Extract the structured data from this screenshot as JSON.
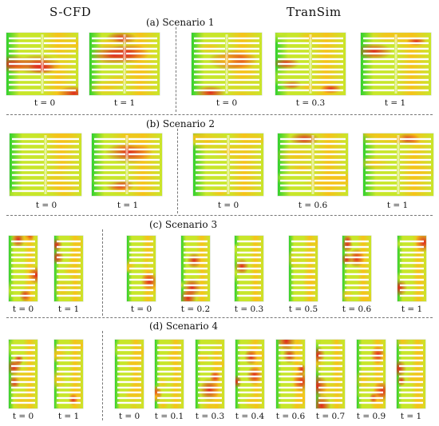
{
  "headers": {
    "left": "S-CFD",
    "right": "TranSim"
  },
  "scenarios": [
    {
      "title": "(a) Scenario 1",
      "scfd": [
        "t = 0",
        "t = 1"
      ],
      "transim": [
        "t = 0",
        "t = 0.3",
        "t = 1"
      ]
    },
    {
      "title": "(b) Scenario 2",
      "scfd": [
        "t = 0",
        "t = 1"
      ],
      "transim": [
        "t = 0",
        "t = 0.6",
        "t = 1"
      ]
    },
    {
      "title": "(c) Scenario 3",
      "scfd": [
        "t = 0",
        "t = 1"
      ],
      "transim": [
        "t = 0",
        "t = 0.2",
        "t = 0.3",
        "t = 0.5",
        "t = 0.6",
        "t = 1"
      ]
    },
    {
      "title": "(d) Scenario 4",
      "scfd": [
        "t = 0",
        "t = 1"
      ],
      "transim": [
        "t = 0",
        "t = 0.1",
        "t = 0.3",
        "t = 0.4",
        "t = 0.6",
        "t = 0.7",
        "t = 0.9",
        "t = 1"
      ]
    }
  ],
  "colors": {
    "low": "#2fd12f",
    "mid": "#c8e62a",
    "high": "#f6c21a",
    "peak": "#e0281e",
    "aisle": "#ffffff"
  }
}
